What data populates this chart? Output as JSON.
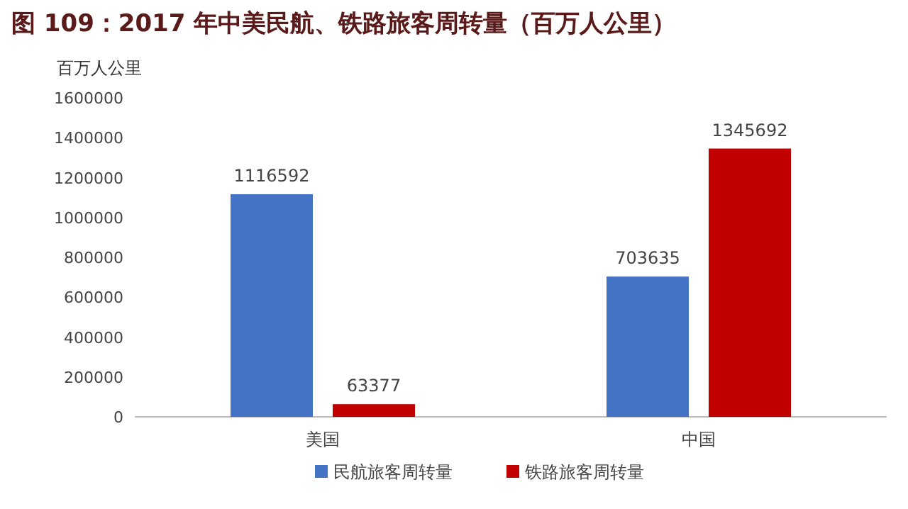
{
  "chart_data": {
    "type": "bar",
    "title": "图 109：2017 年中美民航、铁路旅客周转量（百万人公里）",
    "ylabel": "百万人公里",
    "categories": [
      "美国",
      "中国"
    ],
    "series": [
      {
        "name": "民航旅客周转量",
        "color": "#4472c4",
        "values": [
          1116592,
          703635
        ]
      },
      {
        "name": "铁路旅客周转量",
        "color": "#c00000",
        "values": [
          63377,
          1345692
        ]
      }
    ],
    "ylim": [
      0,
      1600000
    ],
    "yticks": [
      0,
      200000,
      400000,
      600000,
      800000,
      1000000,
      1200000,
      1400000,
      1600000
    ],
    "data_labels": true,
    "legend": "bottom",
    "grid": false
  }
}
